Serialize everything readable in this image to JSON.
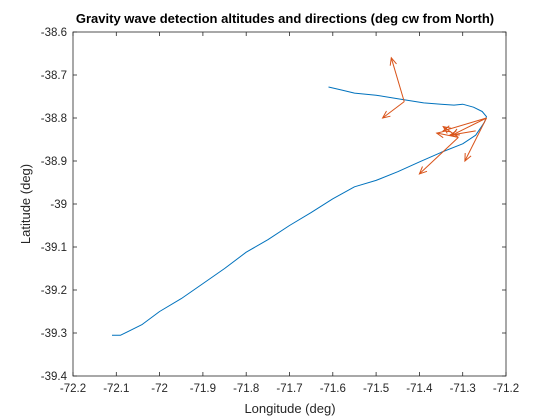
{
  "chart_data": {
    "type": "line",
    "title": "Gravity wave detection altitudes and directions (deg cw from North)",
    "xlabel": "Longitude (deg)",
    "ylabel": "Latitude (deg)",
    "xlim": [
      -72.2,
      -71.2
    ],
    "ylim": [
      -39.4,
      -38.6
    ],
    "xticks": [
      -72.2,
      -72.1,
      -72.0,
      -71.9,
      -71.8,
      -71.7,
      -71.6,
      -71.5,
      -71.4,
      -71.3,
      -71.2
    ],
    "xtick_labels": [
      "-72.2",
      "-72.1",
      "-72",
      "-71.9",
      "-71.8",
      "-71.7",
      "-71.6",
      "-71.5",
      "-71.4",
      "-71.3",
      "-71.2"
    ],
    "yticks": [
      -38.6,
      -38.7,
      -38.8,
      -38.9,
      -39.0,
      -39.1,
      -39.2,
      -39.3,
      -39.4
    ],
    "ytick_labels": [
      "-38.6",
      "-38.7",
      "-38.8",
      "-38.9",
      "-39",
      "-39.1",
      "-39.2",
      "-39.3",
      "-39.4"
    ],
    "grid": false,
    "colors": {
      "track": "#0072BD",
      "arrows": "#D95319"
    },
    "series": [
      {
        "values_xy": [
          [
            -72.11,
            -39.305
          ],
          [
            -72.09,
            -39.305
          ],
          [
            -72.04,
            -39.28
          ],
          [
            -72.0,
            -39.25
          ],
          [
            -71.95,
            -39.22
          ],
          [
            -71.9,
            -39.185
          ],
          [
            -71.85,
            -39.15
          ],
          [
            -71.8,
            -39.112
          ],
          [
            -71.75,
            -39.083
          ],
          [
            -71.7,
            -39.05
          ],
          [
            -71.65,
            -39.02
          ],
          [
            -71.6,
            -38.988
          ],
          [
            -71.55,
            -38.96
          ],
          [
            -71.5,
            -38.945
          ],
          [
            -71.45,
            -38.925
          ],
          [
            -71.4,
            -38.902
          ],
          [
            -71.35,
            -38.88
          ],
          [
            -71.3,
            -38.86
          ],
          [
            -71.27,
            -38.84
          ],
          [
            -71.25,
            -38.81
          ],
          [
            -71.245,
            -38.797
          ],
          [
            -71.255,
            -38.785
          ],
          [
            -71.275,
            -38.775
          ],
          [
            -71.3,
            -38.768
          ],
          [
            -71.32,
            -38.77
          ],
          [
            -71.35,
            -38.768
          ],
          [
            -71.39,
            -38.765
          ],
          [
            -71.45,
            -38.755
          ],
          [
            -71.5,
            -38.747
          ],
          [
            -71.55,
            -38.742
          ],
          [
            -71.58,
            -38.735
          ],
          [
            -71.61,
            -38.728
          ]
        ]
      }
    ],
    "arrows": [
      {
        "from": [
          -71.435,
          -38.762
        ],
        "to": [
          -71.465,
          -38.66
        ]
      },
      {
        "from": [
          -71.435,
          -38.762
        ],
        "to": [
          -71.485,
          -38.8
        ]
      },
      {
        "from": [
          -71.245,
          -38.8
        ],
        "to": [
          -71.345,
          -38.83
        ]
      },
      {
        "from": [
          -71.245,
          -38.8
        ],
        "to": [
          -71.325,
          -38.84
        ]
      },
      {
        "from": [
          -71.245,
          -38.8
        ],
        "to": [
          -71.295,
          -38.9
        ]
      },
      {
        "from": [
          -71.31,
          -38.845
        ],
        "to": [
          -71.36,
          -38.835
        ]
      },
      {
        "from": [
          -71.31,
          -38.845
        ],
        "to": [
          -71.345,
          -38.82
        ]
      },
      {
        "from": [
          -71.31,
          -38.845
        ],
        "to": [
          -71.4,
          -38.93
        ]
      },
      {
        "from": [
          -71.27,
          -38.83
        ],
        "to": [
          -71.33,
          -38.84
        ]
      }
    ]
  }
}
